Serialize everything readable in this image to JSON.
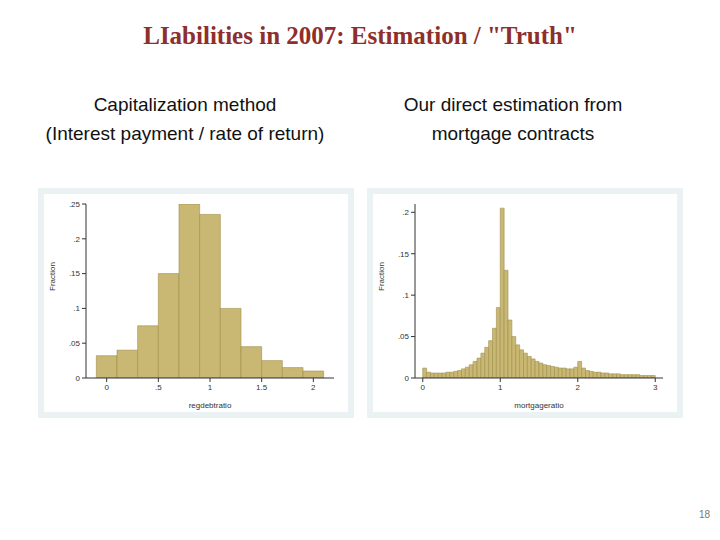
{
  "slide": {
    "title": "LIabilities in 2007: Estimation / \"Truth\"",
    "page": 18
  },
  "chart_data": [
    {
      "type": "histogram",
      "title": "Capitalization method",
      "subtitle": "(Interest payment / rate of return)",
      "xlabel": "regdebtratio",
      "ylabel": "Fraction",
      "color": "#c9b873",
      "bins": [
        -0.1,
        0.1,
        0.3,
        0.5,
        0.7,
        0.9,
        1.1,
        1.3,
        1.5,
        1.7,
        1.9,
        2.1
      ],
      "values": [
        0.032,
        0.04,
        0.075,
        0.15,
        0.25,
        0.235,
        0.1,
        0.045,
        0.025,
        0.015,
        0.01
      ],
      "xlim": [
        -0.2,
        2.2
      ],
      "ylim": [
        0,
        0.25
      ],
      "xticks": [
        0,
        {
          "value": 0.5,
          "label": ".5"
        },
        1,
        1.5,
        2
      ],
      "yticks": [
        0,
        {
          "value": 0.05,
          "label": ".05"
        },
        {
          "value": 0.1,
          "label": ".1"
        },
        {
          "value": 0.15,
          "label": ".15"
        },
        {
          "value": 0.2,
          "label": ".2"
        },
        {
          "value": 0.25,
          "label": ".25"
        }
      ]
    },
    {
      "type": "histogram",
      "title": "Our direct estimation from",
      "subtitle": "mortgage contracts",
      "xlabel": "mortgageratio",
      "ylabel": "Fraction",
      "color": "#c9b873",
      "bins": [
        0,
        0.05,
        0.1,
        0.15,
        0.2,
        0.25,
        0.3,
        0.35,
        0.4,
        0.45,
        0.5,
        0.55,
        0.6,
        0.65,
        0.7,
        0.75,
        0.8,
        0.85,
        0.9,
        0.95,
        1,
        1.05,
        1.1,
        1.15,
        1.2,
        1.25,
        1.3,
        1.35,
        1.4,
        1.45,
        1.5,
        1.55,
        1.6,
        1.65,
        1.7,
        1.75,
        1.8,
        1.85,
        1.9,
        1.95,
        2,
        2.05,
        2.1,
        2.15,
        2.2,
        2.25,
        2.3,
        2.35,
        2.4,
        2.45,
        2.5,
        2.55,
        2.6,
        2.65,
        2.7,
        2.75,
        2.8,
        2.85,
        2.9,
        2.95,
        3
      ],
      "values": [
        0.012,
        0.007,
        0.006,
        0.006,
        0.006,
        0.006,
        0.007,
        0.007,
        0.008,
        0.009,
        0.011,
        0.013,
        0.016,
        0.02,
        0.024,
        0.03,
        0.037,
        0.045,
        0.06,
        0.085,
        0.205,
        0.13,
        0.07,
        0.05,
        0.04,
        0.034,
        0.03,
        0.026,
        0.023,
        0.02,
        0.018,
        0.016,
        0.015,
        0.014,
        0.013,
        0.012,
        0.012,
        0.011,
        0.011,
        0.013,
        0.02,
        0.012,
        0.009,
        0.008,
        0.007,
        0.007,
        0.006,
        0.006,
        0.005,
        0.005,
        0.005,
        0.004,
        0.004,
        0.004,
        0.004,
        0.004,
        0.003,
        0.003,
        0.003,
        0.003
      ],
      "xlim": [
        -0.1,
        3.1
      ],
      "ylim": [
        0,
        0.21
      ],
      "xticks": [
        0,
        1,
        2,
        3
      ],
      "yticks": [
        0,
        {
          "value": 0.05,
          "label": ".05"
        },
        {
          "value": 0.1,
          "label": ".1"
        },
        {
          "value": 0.15,
          "label": ".15"
        },
        {
          "value": 0.2,
          "label": ".2"
        }
      ]
    }
  ]
}
